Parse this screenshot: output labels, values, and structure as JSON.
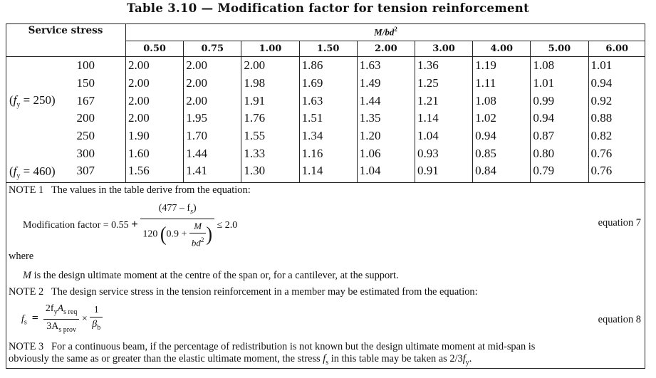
{
  "title": "Table 3.10 — Modification factor for tension reinforcement",
  "table": {
    "row_header": "Service stress",
    "group_header": "M/bd",
    "group_header_sup": "2",
    "columns": [
      "0.50",
      "0.75",
      "1.00",
      "1.50",
      "2.00",
      "3.00",
      "4.00",
      "5.00",
      "6.00"
    ],
    "rows": [
      {
        "prefix": "",
        "stress": "100",
        "values": [
          "2.00",
          "2.00",
          "2.00",
          "1.86",
          "1.63",
          "1.36",
          "1.19",
          "1.08",
          "1.01"
        ]
      },
      {
        "prefix": "",
        "stress": "150",
        "values": [
          "2.00",
          "2.00",
          "1.98",
          "1.69",
          "1.49",
          "1.25",
          "1.11",
          "1.01",
          "0.94"
        ]
      },
      {
        "prefix": "(fy = 250)",
        "prefix_var": "f",
        "prefix_sub": "y",
        "prefix_rest": " = 250)",
        "stress": "167",
        "values": [
          "2.00",
          "2.00",
          "1.91",
          "1.63",
          "1.44",
          "1.21",
          "1.08",
          "0.99",
          "0.92"
        ]
      },
      {
        "prefix": "",
        "stress": "200",
        "values": [
          "2.00",
          "1.95",
          "1.76",
          "1.51",
          "1.35",
          "1.14",
          "1.02",
          "0.94",
          "0.88"
        ]
      },
      {
        "prefix": "",
        "stress": "250",
        "values": [
          "1.90",
          "1.70",
          "1.55",
          "1.34",
          "1.20",
          "1.04",
          "0.94",
          "0.87",
          "0.82"
        ]
      },
      {
        "prefix": "",
        "stress": "300",
        "values": [
          "1.60",
          "1.44",
          "1.33",
          "1.16",
          "1.06",
          "0.93",
          "0.85",
          "0.80",
          "0.76"
        ]
      },
      {
        "prefix": "(fy = 460)",
        "prefix_var": "f",
        "prefix_sub": "y",
        "prefix_rest": " = 460)",
        "stress": "307",
        "values": [
          "1.56",
          "1.41",
          "1.30",
          "1.14",
          "1.04",
          "0.91",
          "0.84",
          "0.79",
          "0.76"
        ]
      }
    ]
  },
  "notes": {
    "note1": {
      "label": "NOTE 1",
      "text": "The values in the table derive from the equation:",
      "equation_lhs": "Modification factor = 0.55",
      "plus": "+",
      "numerator": "(477 – f",
      "numerator_sub": "s",
      "numerator_close": ")",
      "denominator_prefix": "120",
      "denominator_inner": "0.9  +",
      "inner_num": "M",
      "inner_den": "bd",
      "inner_den_sup": "2",
      "rhs": "≤  2.0",
      "equation_label": "equation 7",
      "where": "where",
      "where_var": "M",
      "where_text": " is the design ultimate moment at the centre of the span or, for a cantilever, at the support."
    },
    "note2": {
      "label": "NOTE 2",
      "text": "The design service stress in the tension reinforcement in a member may be estimated from the equation:",
      "lhs_var": "f",
      "lhs_sub": "s",
      "equals": "=",
      "num": "2f",
      "num_sub1": "y",
      "num_var2": "A",
      "num_sub2": "s req",
      "den": "3A",
      "den_sub": "s prov",
      "times": "×",
      "frac2_num": "1",
      "frac2_den": "β",
      "frac2_den_sub": "b",
      "equation_label": "equation 8"
    },
    "note3": {
      "label": "NOTE 3",
      "line1": "For a continuous beam, if the percentage of redistribution is not known but the design ultimate moment at mid-span is",
      "line2_a": "obviously the same as or greater than the elastic ultimate moment, the stress ",
      "line2_var": "f",
      "line2_sub": "s",
      "line2_b": " in this table may be taken as 2/3",
      "line2_var2": "f",
      "line2_sub2": "y",
      "line2_end": "."
    }
  }
}
